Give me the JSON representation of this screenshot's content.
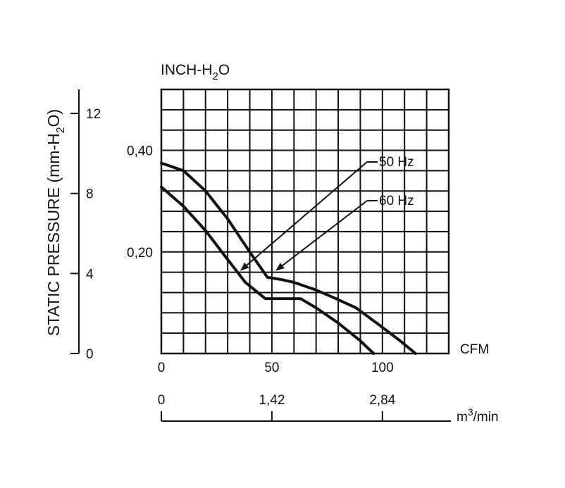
{
  "chart_data": {
    "type": "line",
    "title": "INCH-H2O",
    "title_parts": {
      "prefix": "INCH-H",
      "subscript": "2",
      "suffix": "O"
    },
    "ylabel": "STATIC PRESSURE (mm-H2O)",
    "ylabel_parts": {
      "prefix": "STATIC PRESSURE (mm-H",
      "subscript": "2",
      "suffix": "O)"
    },
    "x_unit_label": "CFM",
    "x_range": [
      0,
      130
    ],
    "x_ticks": [
      "0",
      "50",
      "100"
    ],
    "x_tick_values": [
      0,
      50,
      100
    ],
    "y_range_inch": [
      0,
      0.52
    ],
    "y_ticks_inch": [
      "0,20",
      "0,40"
    ],
    "y_tick_values_inch": [
      0.2,
      0.4
    ],
    "mm_axis": {
      "label": "STATIC PRESSURE (mm-H2O)",
      "ticks": [
        "0",
        "4",
        "8",
        "12"
      ],
      "tick_values": [
        0,
        4,
        8,
        12
      ],
      "range": [
        0,
        13.2
      ]
    },
    "m3_axis": {
      "unit_prefix": "m",
      "unit_sup": "3",
      "unit_suffix": "/min",
      "ticks": [
        "0",
        "1,42",
        "2,84"
      ],
      "tick_values_cfm": [
        0,
        50,
        100
      ]
    },
    "grid": true,
    "series": [
      {
        "name": "50 Hz",
        "x": [
          0,
          10,
          20,
          30,
          40,
          48,
          55,
          60,
          70,
          78,
          88,
          98,
          108,
          115
        ],
        "y": [
          0.375,
          0.36,
          0.32,
          0.265,
          0.2,
          0.15,
          0.145,
          0.14,
          0.125,
          0.11,
          0.09,
          0.058,
          0.025,
          0.0
        ]
      },
      {
        "name": "60 Hz",
        "x": [
          0,
          10,
          20,
          30,
          38,
          47,
          55,
          63,
          70,
          80,
          90,
          96
        ],
        "y": [
          0.328,
          0.29,
          0.242,
          0.185,
          0.14,
          0.108,
          0.108,
          0.108,
          0.09,
          0.06,
          0.025,
          0.0
        ]
      }
    ],
    "annotations": [
      {
        "text": "50 Hz",
        "target_series": "50 Hz",
        "arrow_to_x": 36,
        "arrow_to_y": 0.164
      },
      {
        "text": "60 Hz",
        "target_series": "60 Hz",
        "arrow_to_x": 52,
        "arrow_to_y": 0.164
      }
    ]
  }
}
